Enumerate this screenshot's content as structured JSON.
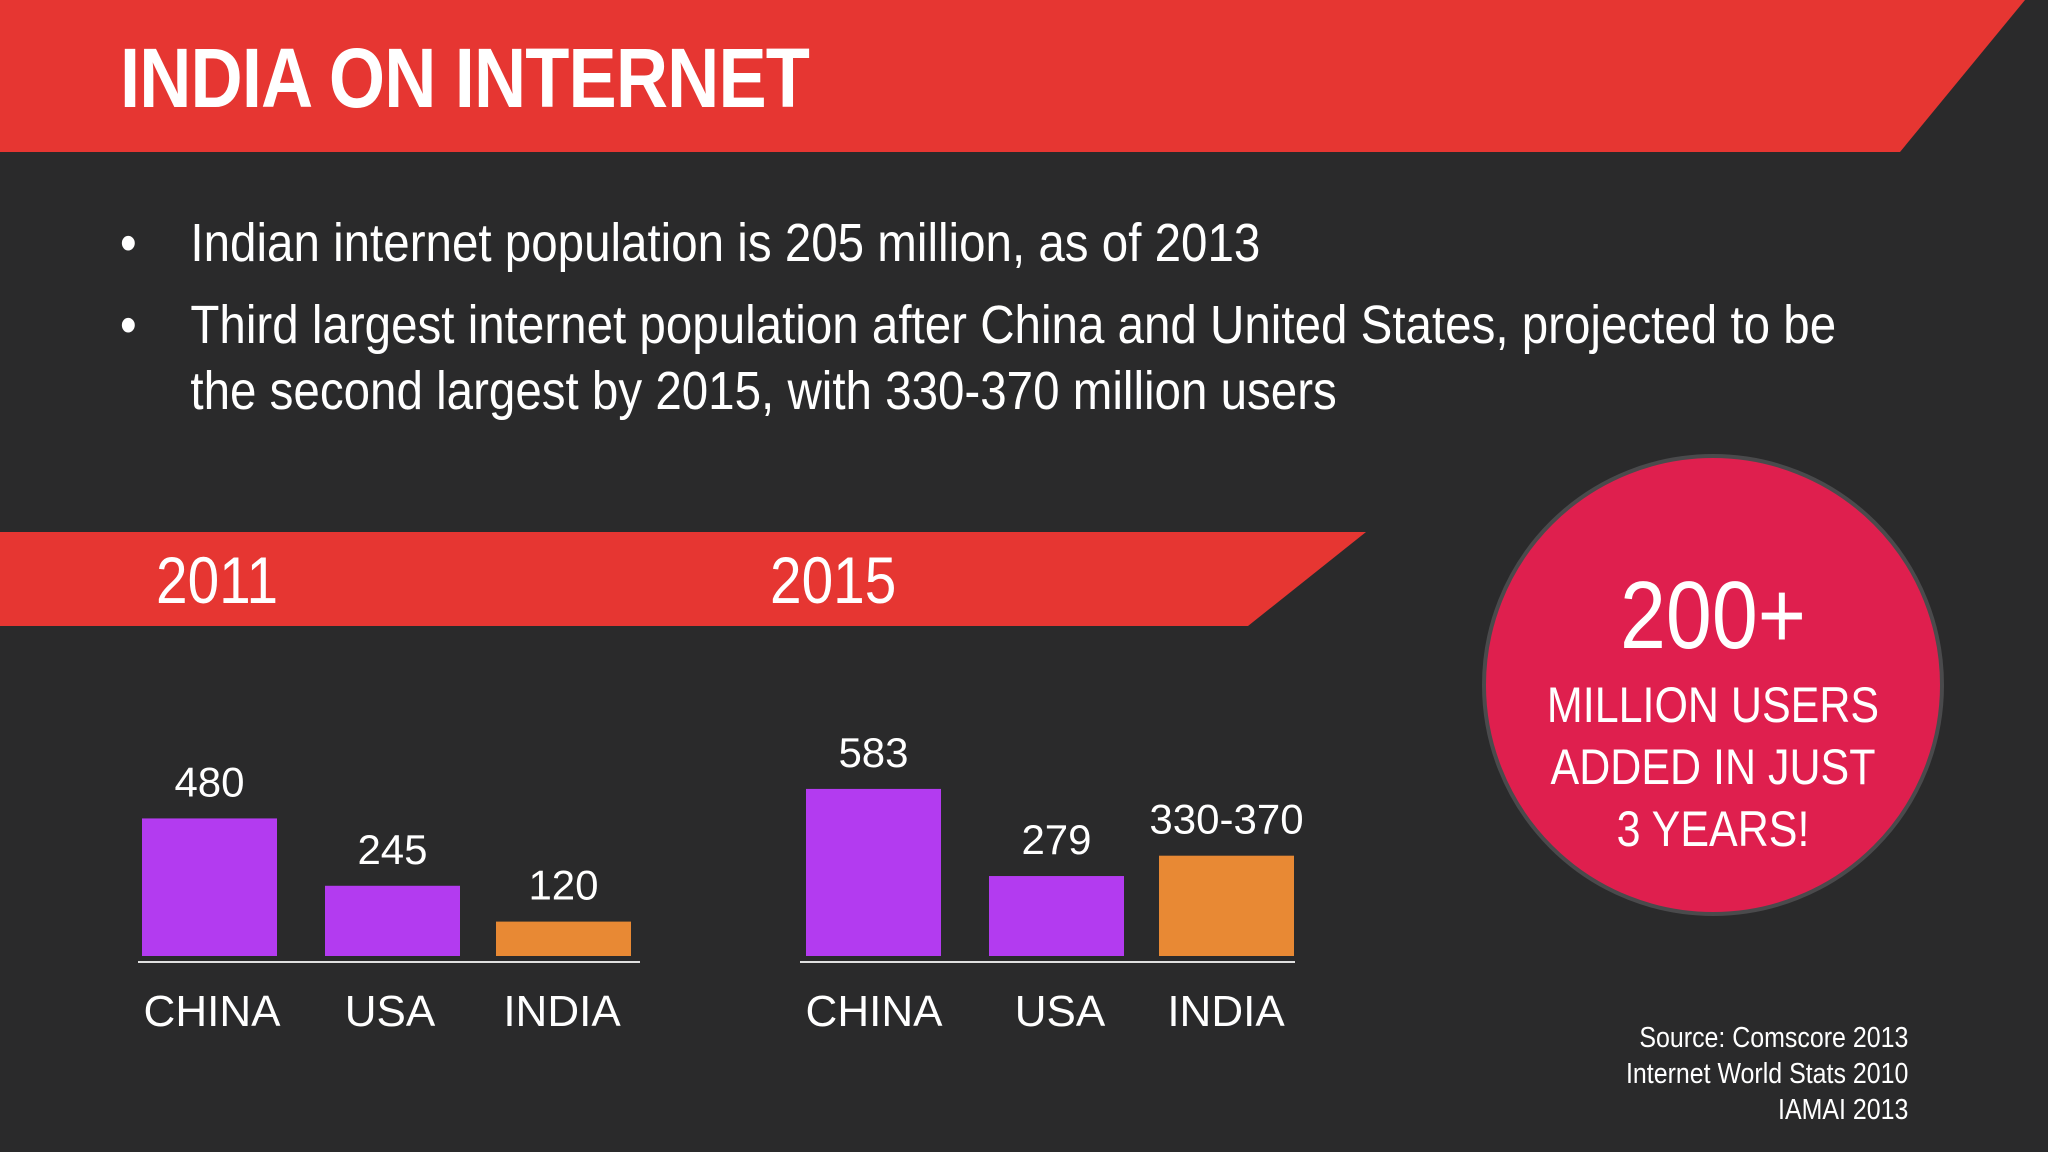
{
  "title": "INDIA ON INTERNET",
  "bullets": [
    "Indian internet population is 205 million, as of 2013",
    "Third largest internet population after China and United States, projected to be the second largest by 2015, with 330-370 million users"
  ],
  "callout": {
    "big": "200+",
    "text": "MILLION USERS ADDED IN JUST 3 YEARS!"
  },
  "sources": [
    "Source: Comscore 2013",
    "Internet World Stats 2010",
    "IAMAI 2013"
  ],
  "colors": {
    "red": "#e63632",
    "purple": "#b33bf0",
    "orange": "#e88934",
    "circle": "#df1f4e",
    "background": "#2a2a2b"
  },
  "chart_data": [
    {
      "type": "bar",
      "title": "2011",
      "categories": [
        "CHINA",
        "USA",
        "INDIA"
      ],
      "values": [
        480,
        245,
        120
      ],
      "labels": [
        "480",
        "245",
        "120"
      ],
      "colors": [
        "#b33bf0",
        "#b33bf0",
        "#e88934"
      ]
    },
    {
      "type": "bar",
      "title": "2015",
      "categories": [
        "CHINA",
        "USA",
        "INDIA"
      ],
      "values": [
        583,
        279,
        350
      ],
      "labels": [
        "583",
        "279",
        "330-370"
      ],
      "colors": [
        "#b33bf0",
        "#b33bf0",
        "#e88934"
      ]
    }
  ]
}
